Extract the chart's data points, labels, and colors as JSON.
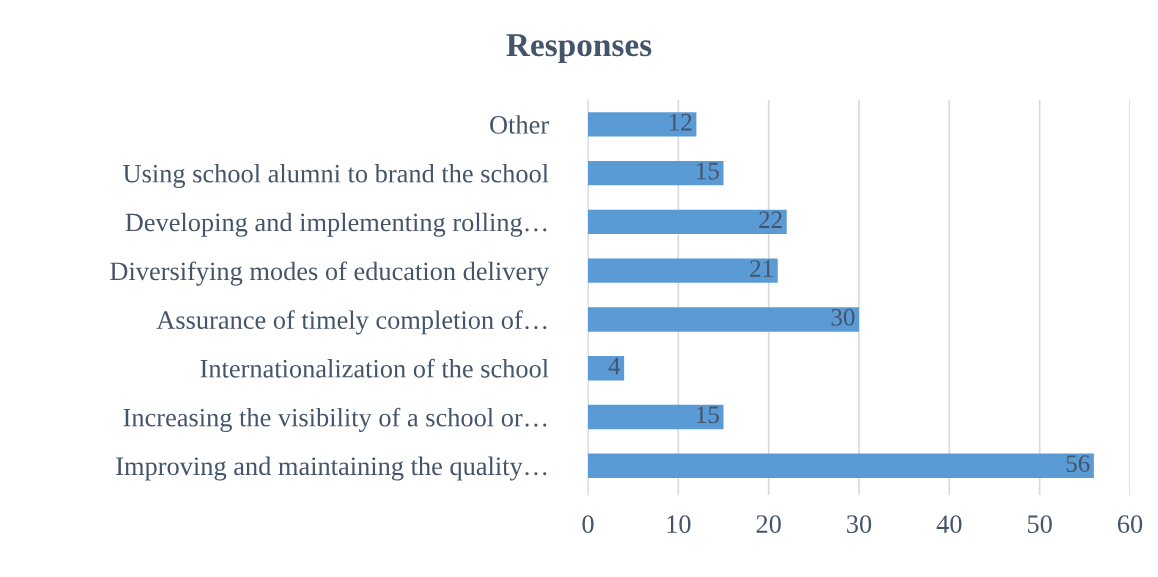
{
  "chart_data": {
    "type": "bar",
    "orientation": "horizontal",
    "title": "Responses",
    "categories": [
      "Other",
      "Using school alumni to brand the school",
      "Developing and implementing rolling…",
      "Diversifying modes of education delivery",
      "Assurance of timely completion of…",
      "Internationalization of the school",
      "Increasing the visibility of a school or…",
      "Improving and maintaining the quality…"
    ],
    "values": [
      12,
      15,
      22,
      21,
      30,
      4,
      15,
      56
    ],
    "color": "#5b9bd5",
    "xlim": [
      0,
      60
    ],
    "xticks": [
      0,
      10,
      20,
      30,
      40,
      50,
      60
    ],
    "grid": "x",
    "data_labels": true
  }
}
